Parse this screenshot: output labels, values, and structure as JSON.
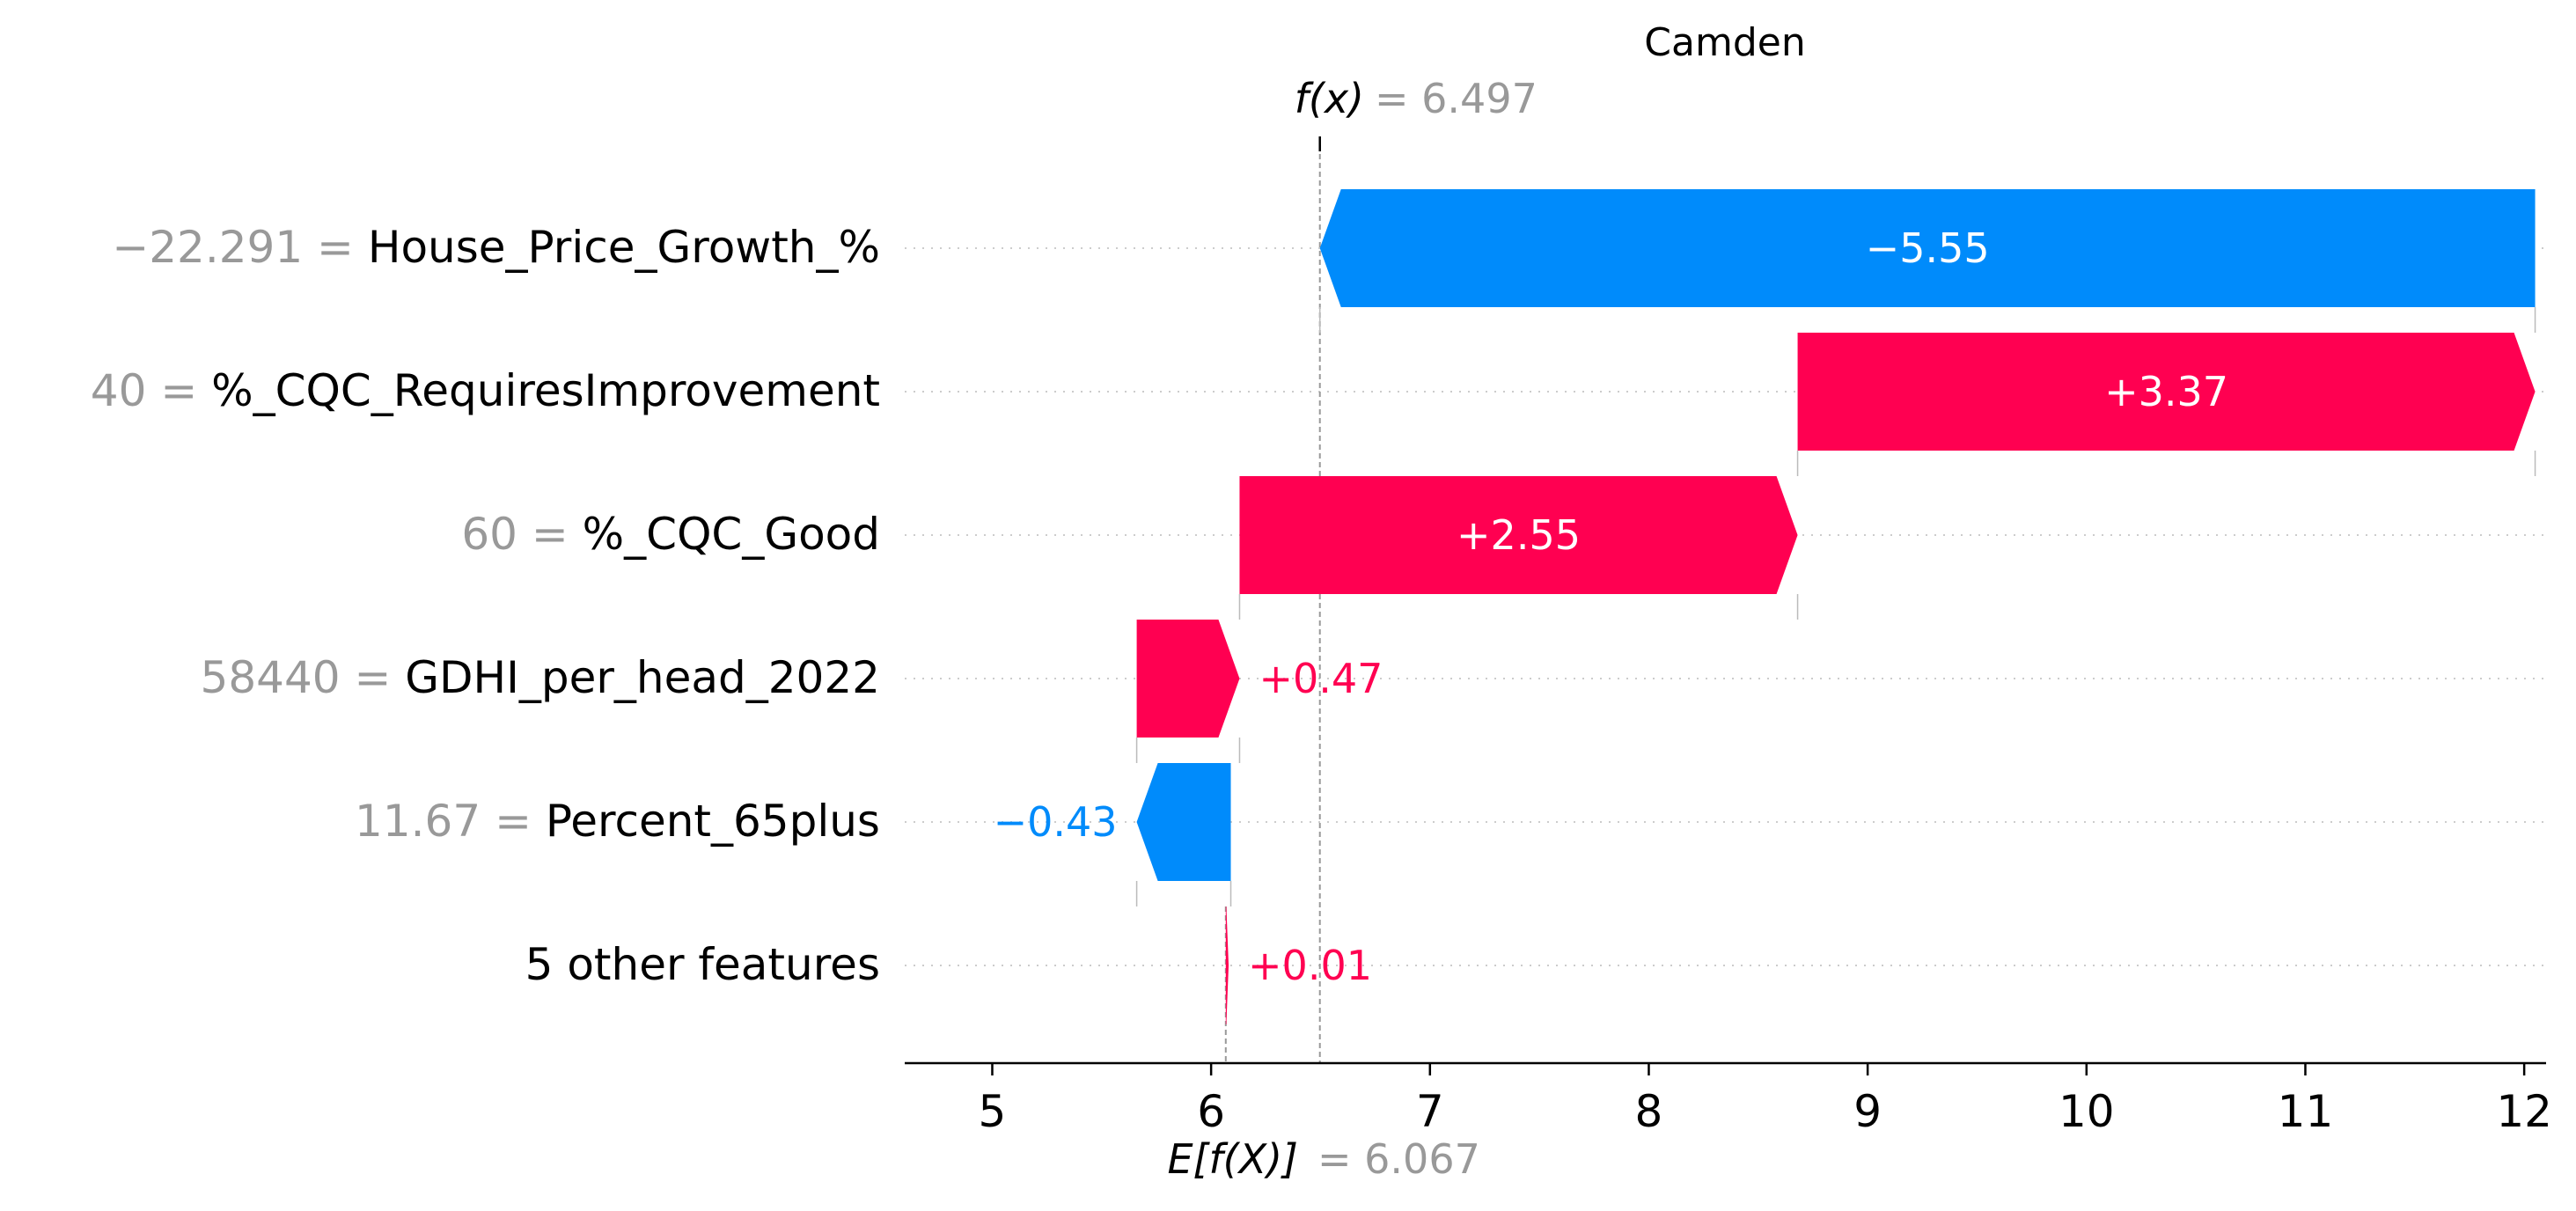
{
  "chart_data": {
    "type": "waterfall",
    "title": "Camden",
    "fx_label": "f(x)",
    "fx_value_text": "= 6.497",
    "fx": 6.497,
    "efx_label": "E[f(X)]",
    "efx_value_text": "= 6.067",
    "base_value": 6.067,
    "xlim": [
      4.6,
      12.1
    ],
    "x_ticks": [
      5,
      6,
      7,
      8,
      9,
      10,
      11,
      12
    ],
    "features": [
      {
        "value": "−22.291",
        "name": "House_Price_Growth_%",
        "start": 12.05,
        "end": 6.497,
        "contribution": -5.55,
        "label": "−5.55"
      },
      {
        "value": "40",
        "name": "%_CQC_RequiresImprovement",
        "start": 8.68,
        "end": 12.05,
        "contribution": 3.37,
        "label": "+3.37"
      },
      {
        "value": "60",
        "name": "%_CQC_Good",
        "start": 6.13,
        "end": 8.68,
        "contribution": 2.55,
        "label": "+2.55"
      },
      {
        "value": "58440",
        "name": "GDHI_per_head_2022",
        "start": 5.66,
        "end": 6.13,
        "contribution": 0.47,
        "label": "+0.47"
      },
      {
        "value": "11.67",
        "name": "Percent_65plus",
        "start": 6.09,
        "end": 5.66,
        "contribution": -0.43,
        "label": "−0.43"
      },
      {
        "value": "",
        "name": "5 other features",
        "start": 6.067,
        "end": 6.08,
        "contribution": 0.01,
        "label": "+0.01"
      }
    ],
    "colors": {
      "positive": "#ff0051",
      "negative": "#008bfb",
      "value_text": "#999999",
      "axis": "#000000",
      "grid": "#cccccc"
    }
  }
}
